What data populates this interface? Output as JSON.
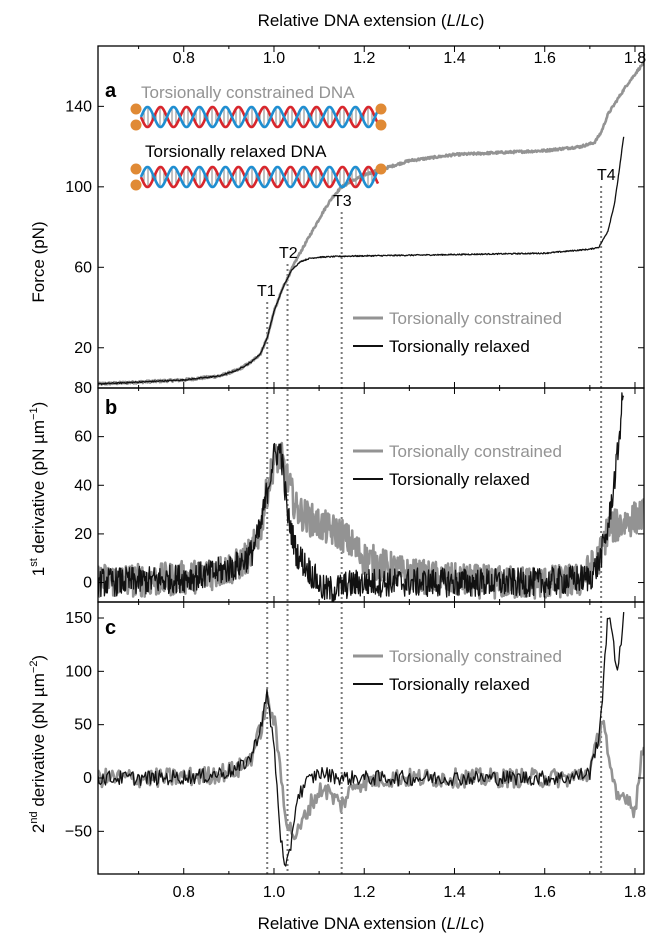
{
  "figure": {
    "x_axis_label_prefix": "Relative DNA extension (",
    "x_axis_label_L": "L",
    "x_axis_label_slash": "/",
    "x_axis_label_Lc": "L",
    "x_axis_label_c": "c",
    "x_axis_label_suffix": ")",
    "x_ticks": [
      "0.8",
      "1.0",
      "1.2",
      "1.4",
      "1.6",
      "1.8"
    ],
    "colors": {
      "constrained": "#939393",
      "relaxed": "#111111",
      "dna_red": "#d8262c",
      "dna_blue": "#1f8ed1",
      "bead": "#e08a35",
      "guide": "#7a7a7a"
    }
  },
  "inset": {
    "constrained_label": "Torsionally constrained DNA",
    "relaxed_label": "Torsionally relaxed DNA"
  },
  "panels": [
    {
      "letter": "a",
      "ylabel_plain": "Force (pN)",
      "y_ticks": [
        "20",
        "60",
        "100",
        "140"
      ],
      "legend": [
        "Torsionally constrained",
        "Torsionally relaxed"
      ],
      "transitions": [
        {
          "label": "T1",
          "x": 0.985
        },
        {
          "label": "T2",
          "x": 1.03
        },
        {
          "label": "T3",
          "x": 1.15
        },
        {
          "label": "T4",
          "x": 1.725
        }
      ]
    },
    {
      "letter": "b",
      "ylabel_pre": "1",
      "ylabel_sup": "st",
      "ylabel_mid": " derivative (pN µm",
      "ylabel_exp": "−1",
      "ylabel_post": ")",
      "y_ticks": [
        "0",
        "20",
        "40",
        "60",
        "80"
      ],
      "legend": [
        "Torsionally constrained",
        "Torsionally relaxed"
      ]
    },
    {
      "letter": "c",
      "ylabel_pre": "2",
      "ylabel_sup": "nd",
      "ylabel_mid": " derivative (pN µm",
      "ylabel_exp": "−2",
      "ylabel_post": ")",
      "y_ticks": [
        "−50",
        "0",
        "50",
        "100",
        "150"
      ],
      "legend": [
        "Torsionally constrained",
        "Torsionally relaxed"
      ]
    }
  ],
  "chart_data": [
    {
      "type": "line",
      "panel": "a",
      "xlabel": "Relative DNA extension (L/Lc)",
      "ylabel": "Force (pN)",
      "xlim": [
        0.61,
        1.82
      ],
      "ylim": [
        0,
        170
      ],
      "series": [
        {
          "name": "Torsionally constrained",
          "x": [
            0.61,
            0.8,
            0.88,
            0.92,
            0.95,
            0.97,
            0.985,
            1.0,
            1.02,
            1.05,
            1.08,
            1.11,
            1.13,
            1.15,
            1.2,
            1.3,
            1.4,
            1.5,
            1.6,
            1.68,
            1.71,
            1.725,
            1.74,
            1.76,
            1.78,
            1.8,
            1.82
          ],
          "y": [
            2,
            4,
            6,
            9,
            13,
            17,
            25,
            38,
            50,
            64,
            76,
            88,
            95,
            100,
            106,
            113,
            116,
            117,
            118,
            120,
            122,
            127,
            136,
            143,
            150,
            156,
            162
          ]
        },
        {
          "name": "Torsionally relaxed",
          "x": [
            0.61,
            0.8,
            0.88,
            0.92,
            0.95,
            0.97,
            0.985,
            1.0,
            1.02,
            1.04,
            1.06,
            1.08,
            1.1,
            1.15,
            1.3,
            1.45,
            1.6,
            1.7,
            1.72,
            1.74,
            1.755,
            1.765,
            1.775
          ],
          "y": [
            2,
            4,
            6,
            9,
            13,
            17,
            25,
            38,
            50,
            59,
            63,
            64.5,
            65,
            65.5,
            66,
            66.5,
            67,
            69,
            70,
            78,
            92,
            108,
            125
          ]
        }
      ]
    },
    {
      "type": "line",
      "panel": "b",
      "xlabel": "Relative DNA extension (L/Lc)",
      "ylabel": "1st derivative (pN µm−1)",
      "xlim": [
        0.61,
        1.82
      ],
      "ylim": [
        -8,
        80
      ],
      "series": [
        {
          "name": "Torsionally constrained",
          "x": [
            0.61,
            0.75,
            0.85,
            0.92,
            0.95,
            0.97,
            0.985,
            1.0,
            1.015,
            1.03,
            1.05,
            1.08,
            1.12,
            1.15,
            1.2,
            1.3,
            1.4,
            1.5,
            1.6,
            1.68,
            1.72,
            1.74,
            1.78,
            1.82
          ],
          "y": [
            1,
            1,
            3,
            7,
            12,
            22,
            38,
            50,
            52,
            42,
            30,
            26,
            22,
            20,
            10,
            3,
            1,
            0,
            0,
            1,
            10,
            22,
            25,
            28
          ]
        },
        {
          "name": "Torsionally relaxed",
          "x": [
            0.61,
            0.75,
            0.85,
            0.92,
            0.95,
            0.97,
            0.985,
            1.0,
            1.015,
            1.03,
            1.05,
            1.07,
            1.09,
            1.11,
            1.13,
            1.16,
            1.2,
            1.3,
            1.4,
            1.5,
            1.6,
            1.7,
            1.72,
            1.74,
            1.76,
            1.775
          ],
          "y": [
            0,
            1,
            3,
            7,
            12,
            22,
            38,
            52,
            55,
            28,
            12,
            7,
            2,
            -3,
            -3,
            -1,
            0,
            0,
            0,
            0,
            0,
            2,
            8,
            22,
            50,
            80
          ]
        }
      ]
    },
    {
      "type": "line",
      "panel": "c",
      "xlabel": "Relative DNA extension (L/Lc)",
      "ylabel": "2nd derivative (pN µm−2)",
      "xlim": [
        0.61,
        1.82
      ],
      "ylim": [
        -90,
        165
      ],
      "series": [
        {
          "name": "Torsionally constrained",
          "x": [
            0.61,
            0.75,
            0.85,
            0.92,
            0.95,
            0.97,
            0.985,
            1.0,
            1.015,
            1.03,
            1.05,
            1.08,
            1.11,
            1.13,
            1.15,
            1.18,
            1.25,
            1.35,
            1.45,
            1.55,
            1.65,
            1.7,
            1.72,
            1.73,
            1.745,
            1.76,
            1.78,
            1.8,
            1.82
          ],
          "y": [
            0,
            0,
            2,
            8,
            20,
            45,
            72,
            55,
            5,
            -45,
            -55,
            -25,
            -8,
            -18,
            -25,
            -5,
            0,
            0,
            0,
            0,
            0,
            5,
            40,
            60,
            5,
            -20,
            -15,
            -30,
            35
          ]
        },
        {
          "name": "Torsionally relaxed",
          "x": [
            0.61,
            0.75,
            0.85,
            0.92,
            0.95,
            0.97,
            0.985,
            1.0,
            1.015,
            1.025,
            1.035,
            1.05,
            1.07,
            1.1,
            1.15,
            1.25,
            1.4,
            1.55,
            1.65,
            1.7,
            1.72,
            1.73,
            1.74,
            1.75,
            1.76,
            1.775
          ],
          "y": [
            0,
            0,
            2,
            8,
            20,
            48,
            78,
            30,
            -55,
            -90,
            -70,
            -20,
            -5,
            5,
            0,
            0,
            0,
            0,
            0,
            5,
            40,
            85,
            160,
            130,
            100,
            150
          ]
        }
      ]
    }
  ]
}
